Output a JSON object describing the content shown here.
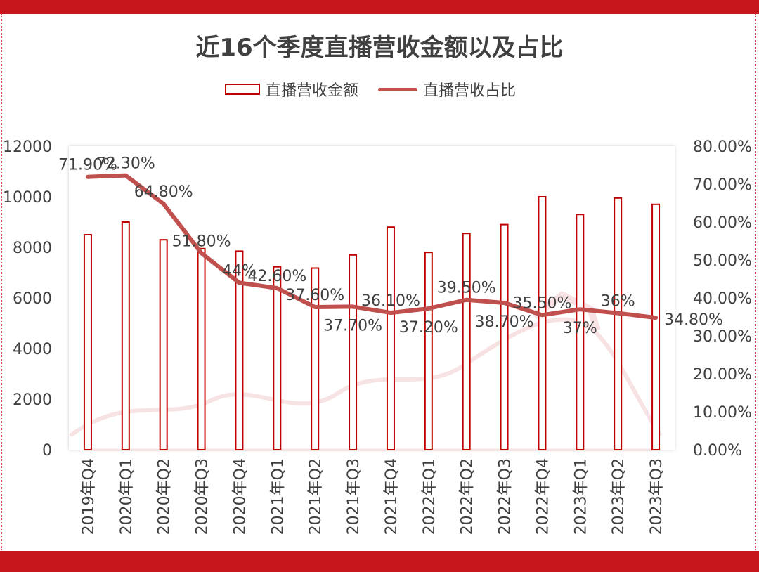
{
  "chart_data": {
    "type": "bar+line",
    "title": "近16个季度直播营收金额以及占比",
    "categories": [
      "2019年Q4",
      "2020年Q1",
      "2020年Q2",
      "2020年Q3",
      "2020年Q4",
      "2021年Q1",
      "2021年Q2",
      "2021年Q3",
      "2021年Q4",
      "2022年Q1",
      "2022年Q2",
      "2022年Q3",
      "2022年Q4",
      "2023年Q1",
      "2023年Q2",
      "2023年Q3"
    ],
    "series": [
      {
        "name": "直播营收金额",
        "type": "bar",
        "axis": "left",
        "values": [
          8500,
          9000,
          8300,
          7950,
          7850,
          7230,
          7180,
          7700,
          8800,
          7800,
          8550,
          8900,
          10000,
          9300,
          9950,
          9700
        ]
      },
      {
        "name": "直播营收占比",
        "type": "line",
        "axis": "right",
        "values": [
          71.9,
          72.3,
          64.8,
          51.8,
          44,
          42.6,
          37.6,
          37.7,
          36.1,
          37.2,
          39.5,
          38.7,
          35.5,
          37,
          36,
          34.8
        ],
        "labels": [
          "71.90%",
          "72.30%",
          "64.80%",
          "51.80%",
          "44%",
          "42.60%",
          "37.60%",
          "37.70%",
          "36.10%",
          "37.20%",
          "39.50%",
          "38.70%",
          "35.50%",
          "37%",
          "36%",
          "34.80%"
        ]
      }
    ],
    "y_left": {
      "min": 0,
      "max": 12000,
      "ticks": [
        "0",
        "2000",
        "4000",
        "6000",
        "8000",
        "10000",
        "12000"
      ]
    },
    "y_right": {
      "min": 0,
      "max": 80,
      "ticks": [
        "0.00%",
        "10.00%",
        "20.00%",
        "30.00%",
        "40.00%",
        "50.00%",
        "60.00%",
        "70.00%",
        "80.00%"
      ]
    },
    "colors": {
      "bar_stroke": "#c00000",
      "line": "#c0504d",
      "band": "#c8161d"
    },
    "legend": [
      "直播营收金额",
      "直播营收占比"
    ]
  }
}
